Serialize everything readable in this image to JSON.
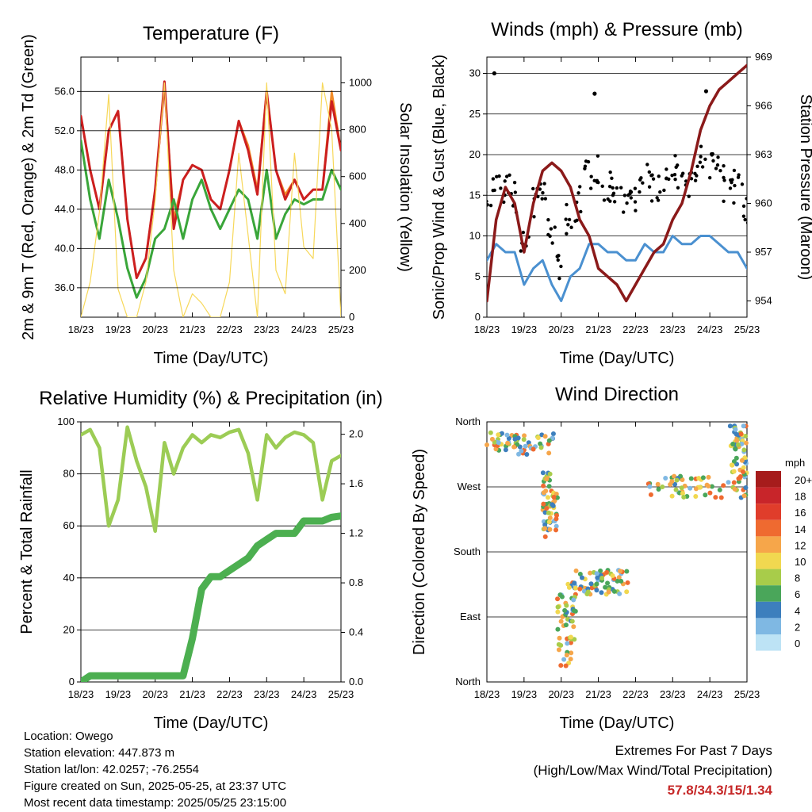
{
  "x_ticks": [
    "18/23",
    "19/23",
    "20/23",
    "21/23",
    "22/23",
    "23/23",
    "24/23",
    "25/23"
  ],
  "chart_data": [
    {
      "type": "line",
      "title": "Temperature (F)",
      "xlabel": "Time (Day/UTC)",
      "ylabel": "2m & 9m T (Red, Orange) & 2m Td (Green)",
      "y2label": "Solar Insolation (Yellow)",
      "ylim": [
        33,
        59.5
      ],
      "y2lim": [
        0,
        1110
      ],
      "yticks": [
        "36.0",
        "40.0",
        "44.0",
        "48.0",
        "52.0",
        "56.0"
      ],
      "y2ticks": [
        "0",
        "200",
        "400",
        "600",
        "800",
        "1000"
      ],
      "x": [
        0,
        0.25,
        0.5,
        0.75,
        1,
        1.25,
        1.5,
        1.75,
        2,
        2.25,
        2.5,
        2.75,
        3,
        3.25,
        3.5,
        3.75,
        4,
        4.25,
        4.5,
        4.75,
        5,
        5.25,
        5.5,
        5.75,
        6,
        6.25,
        6.5,
        6.75,
        7
      ],
      "series": [
        {
          "key": "t9",
          "color": "#f28c28",
          "width": 2.5,
          "values": [
            53.5,
            48,
            44,
            52,
            54,
            43,
            37,
            39,
            46,
            56.5,
            43,
            47,
            48.5,
            48,
            45,
            44,
            48,
            53,
            50.5,
            46,
            56,
            48,
            45.5,
            47,
            45,
            46,
            46,
            56,
            50
          ]
        },
        {
          "key": "t2",
          "color": "#cc1f1f",
          "width": 3,
          "values": [
            53.5,
            48,
            44,
            52,
            54,
            43,
            37,
            39,
            46,
            57,
            42,
            47,
            48.5,
            48,
            45,
            44,
            48,
            53,
            50,
            45.5,
            56,
            48,
            45,
            47,
            45,
            46,
            46,
            55,
            50
          ]
        },
        {
          "key": "td",
          "color": "#3aa63a",
          "width": 3,
          "values": [
            51,
            45,
            41,
            47,
            43,
            38,
            35,
            37,
            41,
            42,
            45,
            41,
            45,
            47,
            44,
            42,
            44,
            46,
            45,
            41,
            48,
            41,
            43.5,
            45,
            44.5,
            45,
            45,
            48,
            46
          ]
        },
        {
          "key": "solar",
          "axis": "y2",
          "color": "#f7d85a",
          "width": 1.2,
          "values": [
            0,
            150,
            450,
            950,
            120,
            0,
            0,
            150,
            500,
            1000,
            200,
            0,
            100,
            60,
            0,
            0,
            150,
            700,
            350,
            0,
            1000,
            200,
            100,
            700,
            300,
            250,
            1000,
            800,
            0
          ]
        }
      ]
    },
    {
      "type": "line",
      "title": "Winds (mph) & Pressure (mb)",
      "xlabel": "Time (Day/UTC)",
      "ylabel": "Sonic/Prop Wind & Gust (Blue, Black)",
      "y2label": "Station Pressure (Maroon)",
      "ylim": [
        0,
        32
      ],
      "y2lim": [
        953,
        969
      ],
      "yticks": [
        "0",
        "5",
        "10",
        "15",
        "20",
        "25",
        "30"
      ],
      "y2ticks": [
        "954",
        "957",
        "960",
        "963",
        "966",
        "969"
      ],
      "x": [
        0,
        0.25,
        0.5,
        0.75,
        1,
        1.25,
        1.5,
        1.75,
        2,
        2.25,
        2.5,
        2.75,
        3,
        3.25,
        3.5,
        3.75,
        4,
        4.25,
        4.5,
        4.75,
        5,
        5.25,
        5.5,
        5.75,
        6,
        6.25,
        6.5,
        6.75,
        7
      ],
      "series": [
        {
          "key": "wind",
          "color": "#4a90d0",
          "width": 3,
          "values": [
            7,
            9,
            8,
            8,
            4,
            6,
            7,
            4,
            2,
            5,
            6,
            9,
            9,
            8,
            8,
            7,
            7,
            9,
            8,
            8,
            10,
            9,
            9,
            10,
            10,
            9,
            8,
            8,
            6
          ]
        },
        {
          "key": "gust",
          "color": "#000000",
          "width": 0,
          "dots": true,
          "values": [
            14,
            17,
            16,
            15,
            9,
            14,
            15,
            11,
            6,
            12,
            14,
            17,
            18,
            16,
            16,
            15,
            14,
            17,
            16,
            17,
            18,
            17,
            17,
            19,
            19,
            18,
            16,
            16,
            13
          ]
        },
        {
          "key": "pressure",
          "axis": "y2",
          "color": "#8b1a1a",
          "width": 3.5,
          "values": [
            954,
            959,
            961,
            960,
            957,
            960,
            962,
            962.5,
            962,
            961,
            959,
            958,
            956,
            955.5,
            955,
            954,
            955,
            956,
            957,
            957.5,
            959,
            960,
            962,
            964.5,
            966,
            967,
            967.5,
            968,
            968.5
          ]
        }
      ],
      "annotation_points": [
        {
          "x": 0.2,
          "y": 30
        },
        {
          "x": 2.9,
          "y": 27.5
        },
        {
          "x": 5.9,
          "y": 27.8
        }
      ]
    },
    {
      "type": "line",
      "title": "Relative Humidity (%) & Precipitation (in)",
      "xlabel": "Time (Day/UTC)",
      "ylabel": "Percent & Total Rainfall",
      "ylim": [
        0,
        100
      ],
      "y2lim": [
        0,
        2.1
      ],
      "yticks": [
        "0",
        "20",
        "40",
        "60",
        "80",
        "100"
      ],
      "y2ticks": [
        "0.0",
        "0.4",
        "0.8",
        "1.2",
        "1.6",
        "2.0"
      ],
      "x": [
        0,
        0.25,
        0.5,
        0.75,
        1,
        1.25,
        1.5,
        1.75,
        2,
        2.25,
        2.5,
        2.75,
        3,
        3.25,
        3.5,
        3.75,
        4,
        4.25,
        4.5,
        4.75,
        5,
        5.25,
        5.5,
        5.75,
        6,
        6.25,
        6.5,
        6.75,
        7
      ],
      "series": [
        {
          "key": "rh",
          "color": "#9ccc55",
          "width": 4.5,
          "values": [
            95,
            97,
            90,
            60,
            70,
            98,
            85,
            75,
            58,
            92,
            80,
            90,
            95,
            92,
            95,
            94,
            96,
            97,
            88,
            70,
            95,
            90,
            94,
            96,
            95,
            92,
            70,
            85,
            87
          ]
        },
        {
          "key": "precip",
          "axis": "y2",
          "color": "#4caf50",
          "width": 9,
          "values": [
            0,
            0.05,
            0.05,
            0.05,
            0.05,
            0.05,
            0.05,
            0.05,
            0.05,
            0.05,
            0.05,
            0.05,
            0.35,
            0.75,
            0.85,
            0.85,
            0.9,
            0.95,
            1.0,
            1.1,
            1.15,
            1.2,
            1.2,
            1.2,
            1.3,
            1.3,
            1.3,
            1.33,
            1.34
          ]
        }
      ]
    },
    {
      "type": "scatter",
      "title": "Wind Direction",
      "xlabel": "Time (Day/UTC)",
      "ylabel": "Direction (Colored By Speed)",
      "yticks": [
        "North",
        "East",
        "South",
        "West",
        "North"
      ],
      "ylim": [
        0,
        360
      ],
      "legend_title": "mph",
      "legend_labels": [
        "20+",
        "18",
        "16",
        "14",
        "12",
        "10",
        "8",
        "6",
        "4",
        "2",
        "0"
      ],
      "legend_colors": [
        "#a61c1c",
        "#c8252a",
        "#e03d2b",
        "#ef6a30",
        "#f6a64a",
        "#f1d850",
        "#a8cc4a",
        "#4aa65a",
        "#3d7fbd",
        "#7fb8e3",
        "#bde3f5"
      ],
      "clusters": [
        {
          "x0": 0,
          "x1": 1.8,
          "y0": 315,
          "y1": 345
        },
        {
          "x0": 1.5,
          "x1": 1.9,
          "y0": 200,
          "y1": 290
        },
        {
          "x0": 1.9,
          "x1": 2.4,
          "y0": 20,
          "y1": 140
        },
        {
          "x0": 2.4,
          "x1": 3.8,
          "y0": 120,
          "y1": 155
        },
        {
          "x0": 4.3,
          "x1": 7,
          "y0": 255,
          "y1": 285
        },
        {
          "x0": 6.5,
          "x1": 7,
          "y0": 280,
          "y1": 355
        }
      ]
    }
  ],
  "info": {
    "location": "Location: Owego",
    "elevation": "Station elevation: 447.873 m",
    "latlon": "Station lat/lon: 42.0257; -76.2554",
    "created": "Figure created on Sun, 2025-05-25, at 23:37 UTC",
    "latest": "Most recent data timestamp: 2025/05/25 23:15:00"
  },
  "extremes": {
    "title": "Extremes For Past 7 Days",
    "subtitle": "(High/Low/Max Wind/Total Precipitation)",
    "values": "57.8/34.3/15/1.34"
  }
}
